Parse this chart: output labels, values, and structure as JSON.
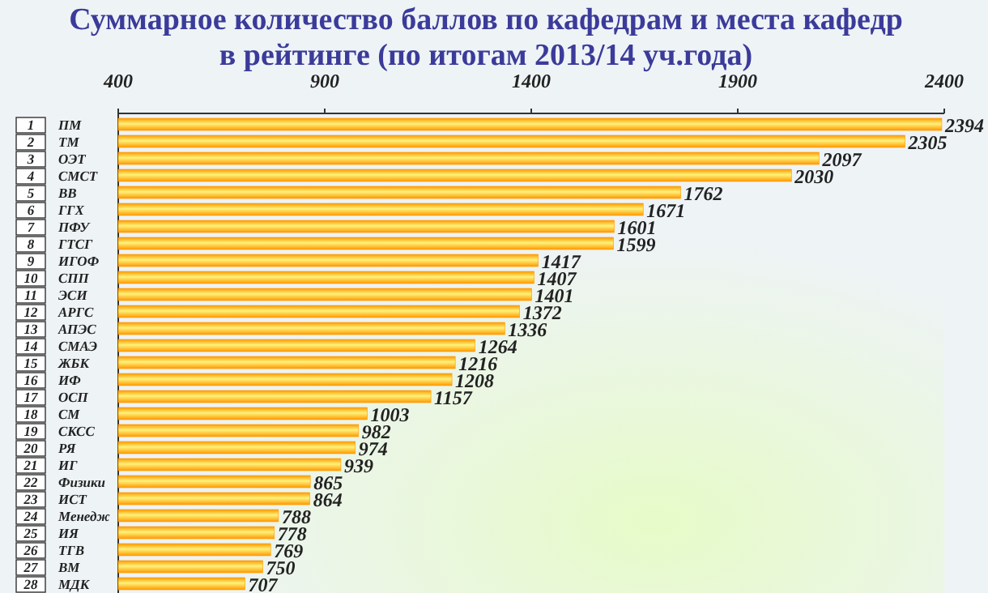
{
  "chart_data": {
    "type": "bar",
    "orientation": "horizontal",
    "title": "Суммарное количество баллов по кафедрам и места кафедр\nв рейтинге (по итогам 2013/14 уч.года)",
    "categories": [
      "1 ПМ",
      "2 ТМ",
      "3 ОЭТ",
      "4 СМСТ",
      "5 ВВ",
      "6 ГГХ",
      "7 ПФУ",
      "8 ГТСГ",
      "9 ИГОФ",
      "10 СПП",
      "11 ЭСИ",
      "12 АРГС",
      "13 АПЭС",
      "14 СМАЭ",
      "15 ЖБК",
      "16 ИФ",
      "17 ОСП",
      "18 СМ",
      "19 СКСС",
      "20 РЯ",
      "21 ИГ",
      "22 Физики",
      "23 ИСТ",
      "24 Менедж",
      "25 ИЯ",
      "26 ТГВ",
      "27 ВМ",
      "28 МДК"
    ],
    "values": [
      2394,
      2305,
      2097,
      2030,
      1762,
      1671,
      1601,
      1599,
      1417,
      1407,
      1401,
      1372,
      1336,
      1264,
      1216,
      1208,
      1157,
      1003,
      982,
      974,
      939,
      865,
      864,
      788,
      778,
      769,
      750,
      707
    ],
    "color": "#ff9900",
    "xlim": [
      400,
      2400
    ],
    "xticks": [
      400,
      900,
      1400,
      1900,
      2400
    ],
    "data_labels": true
  }
}
